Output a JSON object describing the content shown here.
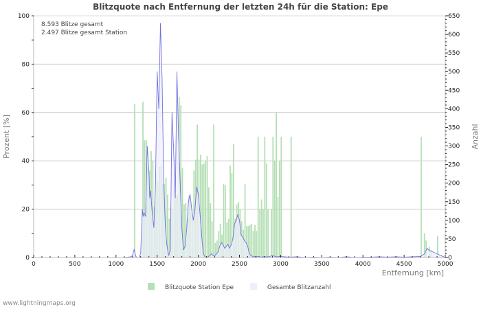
{
  "chart_data": {
    "type": "bar",
    "title": "Blitzquote nach Entfernung der letzten 24h für die Station: Epe",
    "xlabel": "Entfernung   [km]",
    "ylabel": "Prozent   [%]",
    "y2label": "Anzahl",
    "xlim": [
      0,
      5000
    ],
    "ylim": [
      0,
      100
    ],
    "y2lim": [
      0,
      650
    ],
    "x_ticks": [
      0,
      500,
      1000,
      1500,
      2000,
      2500,
      3000,
      3500,
      4000,
      4500,
      5000
    ],
    "y_ticks": [
      0,
      20,
      40,
      60,
      80,
      100
    ],
    "y2_ticks": [
      0,
      50,
      100,
      150,
      200,
      250,
      300,
      350,
      400,
      450,
      500,
      550,
      600,
      650
    ],
    "grid": true,
    "legend_position": "bottom",
    "annotations": [
      "8.593 Blitze gesamt",
      "2.497 Blitze gesamt Station"
    ],
    "series": [
      {
        "name": "Blitzquote Station Epe",
        "type": "bar",
        "axis": "left",
        "color": "#b5dfb5",
        "x": [
          1220,
          1320,
          1340,
          1360,
          1380,
          1400,
          1420,
          1440,
          1460,
          1480,
          1500,
          1520,
          1540,
          1560,
          1580,
          1600,
          1620,
          1640,
          1660,
          1680,
          1700,
          1720,
          1740,
          1760,
          1780,
          1800,
          1820,
          1840,
          1860,
          1880,
          1900,
          1920,
          1940,
          1960,
          1980,
          2000,
          2020,
          2040,
          2060,
          2080,
          2100,
          2120,
          2140,
          2160,
          2180,
          2200,
          2220,
          2240,
          2260,
          2280,
          2300,
          2320,
          2340,
          2360,
          2380,
          2400,
          2420,
          2440,
          2460,
          2480,
          2500,
          2520,
          2540,
          2560,
          2580,
          2600,
          2620,
          2640,
          2660,
          2680,
          2700,
          2720,
          2740,
          2760,
          2780,
          2800,
          2820,
          2840,
          2860,
          2880,
          2900,
          2920,
          2940,
          2960,
          2980,
          3000,
          3020,
          3040,
          3060,
          3080,
          3100,
          3120,
          4700,
          4740,
          4760,
          4800,
          4820,
          4860,
          4900,
          4920
        ],
        "values": [
          63.5,
          64.5,
          48.5,
          48.5,
          37.5,
          36,
          44,
          40,
          21,
          35,
          31.5,
          37.5,
          38,
          30.5,
          30.5,
          33,
          26,
          16,
          21,
          20,
          28,
          25.5,
          26,
          66.5,
          63,
          37,
          22,
          22.5,
          16,
          25.5,
          23,
          17,
          36,
          40.5,
          55,
          40.5,
          42.5,
          38.5,
          39,
          40,
          42,
          29,
          22.5,
          15,
          55,
          6,
          7,
          11,
          14,
          9.5,
          30.5,
          30,
          14.5,
          16,
          38,
          35,
          47,
          16,
          22,
          23,
          20,
          15,
          11.5,
          30.5,
          13,
          13,
          13.5,
          14,
          11,
          13.5,
          11,
          50,
          20,
          24,
          20,
          50,
          39,
          20,
          0,
          20,
          50,
          40,
          60,
          25,
          40,
          50,
          0,
          0,
          0,
          0,
          0,
          50,
          50,
          10,
          7,
          4.5,
          3,
          0,
          9,
          0
        ]
      },
      {
        "name": "Gesamte Blitzanzahl",
        "type": "area",
        "axis": "right",
        "color": "#7070e0",
        "fill": "#eeeefc",
        "x": [
          1000,
          1100,
          1180,
          1200,
          1220,
          1240,
          1260,
          1280,
          1300,
          1320,
          1330,
          1340,
          1360,
          1380,
          1400,
          1410,
          1420,
          1440,
          1460,
          1480,
          1500,
          1520,
          1540,
          1560,
          1580,
          1600,
          1620,
          1640,
          1660,
          1680,
          1700,
          1720,
          1740,
          1760,
          1780,
          1800,
          1820,
          1840,
          1860,
          1880,
          1900,
          1920,
          1940,
          1960,
          1980,
          2000,
          2020,
          2040,
          2060,
          2080,
          2100,
          2120,
          2140,
          2160,
          2180,
          2200,
          2220,
          2240,
          2260,
          2280,
          2300,
          2320,
          2340,
          2360,
          2380,
          2400,
          2420,
          2440,
          2460,
          2480,
          2500,
          2520,
          2540,
          2560,
          2580,
          2600,
          2620,
          2640,
          2660,
          2680,
          2700,
          2720,
          2740,
          2760,
          2780,
          2800,
          2850,
          2900,
          2950,
          3000,
          3050,
          3100,
          3200,
          3300,
          3400,
          3500,
          3600,
          3700,
          3800,
          3900,
          4000,
          4100,
          4200,
          4300,
          4400,
          4500,
          4600,
          4700,
          4750,
          4780,
          4800,
          4850,
          4900,
          4950,
          5000
        ],
        "values": [
          0,
          0,
          2,
          5,
          22,
          3,
          0,
          0,
          10,
          130,
          110,
          120,
          110,
          300,
          230,
          160,
          180,
          120,
          80,
          200,
          500,
          400,
          630,
          480,
          200,
          80,
          30,
          5,
          20,
          390,
          290,
          160,
          500,
          330,
          200,
          80,
          20,
          30,
          80,
          150,
          170,
          130,
          100,
          130,
          190,
          170,
          120,
          60,
          10,
          2,
          0,
          2,
          5,
          10,
          5,
          5,
          10,
          15,
          30,
          40,
          35,
          25,
          30,
          35,
          25,
          35,
          50,
          90,
          100,
          115,
          100,
          60,
          55,
          45,
          40,
          30,
          10,
          5,
          3,
          2,
          3,
          2,
          3,
          1,
          2,
          2,
          2,
          5,
          2,
          3,
          2,
          1,
          2,
          0,
          1,
          0,
          1,
          0,
          2,
          0,
          1,
          1,
          2,
          1,
          2,
          1,
          2,
          3,
          10,
          25,
          20,
          15,
          10,
          5,
          0
        ]
      }
    ]
  },
  "header": {
    "title": "Blitzquote nach Entfernung der letzten 24h für die Station: Epe"
  },
  "info": {
    "line1": "8.593 Blitze gesamt",
    "line2": "2.497 Blitze gesamt Station"
  },
  "legend": {
    "item1": "Blitzquote Station Epe",
    "item2": "Gesamte Blitzanzahl"
  },
  "footer": {
    "source": "www.lightningmaps.org"
  }
}
